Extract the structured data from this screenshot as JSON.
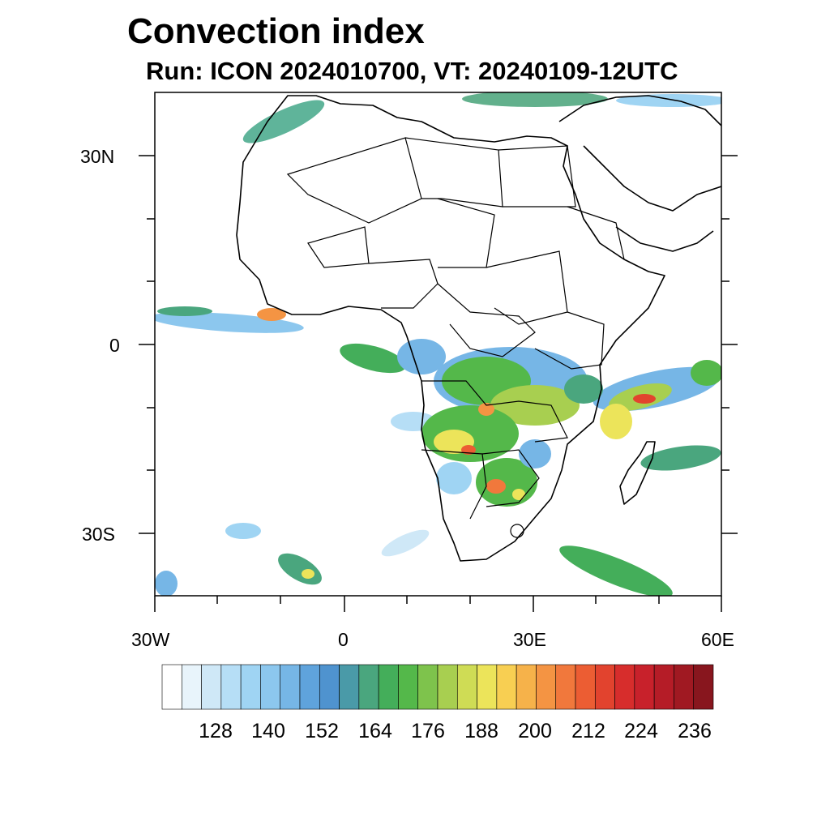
{
  "title": "Convection index",
  "subtitle": "Run: ICON 2024010700,  VT: 20240109-12UTC",
  "lat_labels": [
    "30N",
    "0",
    "30S"
  ],
  "lon_labels": [
    "30W",
    "0",
    "30E",
    "60E"
  ],
  "colorbar": {
    "labels": [
      "128",
      "140",
      "152",
      "164",
      "176",
      "188",
      "200",
      "212",
      "224",
      "236"
    ],
    "colors": [
      "#ffffff",
      "#e8f4fb",
      "#cfe8f7",
      "#b6def6",
      "#9fd4f3",
      "#8cc7ee",
      "#76b6e6",
      "#5fa3dc",
      "#4f93cf",
      "#4a9aa8",
      "#4aa67e",
      "#44ae5a",
      "#54b84a",
      "#7ec34c",
      "#a8cf50",
      "#cfdc55",
      "#ece45a",
      "#f8cf52",
      "#f6b24a",
      "#f49443",
      "#f1783c",
      "#ec5d33",
      "#e2432e",
      "#d72d2c",
      "#c8212b",
      "#b51c27",
      "#a01922",
      "#88161e"
    ]
  }
}
